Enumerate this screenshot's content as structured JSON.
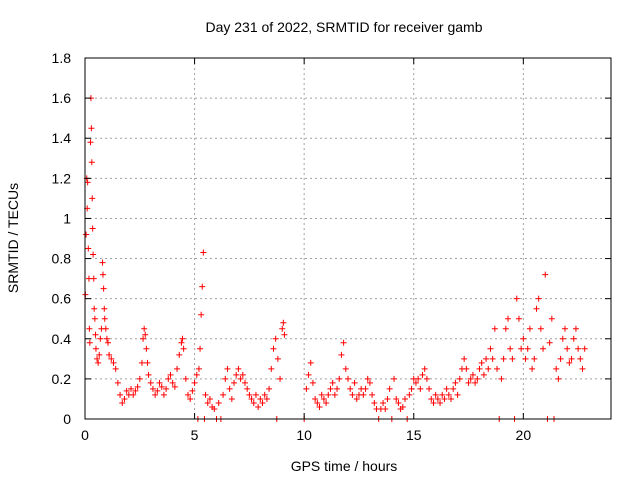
{
  "chart_data": {
    "type": "scatter",
    "title": "Day 231 of 2022, SRMTID for receiver gamb",
    "xlabel": "GPS time / hours",
    "ylabel": "SRMTID / TECUs",
    "xlim": [
      0,
      24
    ],
    "ylim": [
      0,
      1.8
    ],
    "xticks": [
      0,
      5,
      10,
      15,
      20
    ],
    "xtick_labels": [
      "0",
      "5",
      "10",
      "15",
      "20"
    ],
    "yticks": [
      0,
      0.2,
      0.4,
      0.6,
      0.8,
      1,
      1.2,
      1.4,
      1.6,
      1.8
    ],
    "ytick_labels": [
      "0",
      "0.2",
      "0.4",
      "0.6",
      "0.8",
      "1",
      "1.2",
      "1.4",
      "1.6",
      "1.8"
    ],
    "grid": true,
    "marker": "plus",
    "color": "#ff0000",
    "series": [
      {
        "name": "SRMTID",
        "points": [
          [
            0.02,
            0.62
          ],
          [
            0.05,
            0.92
          ],
          [
            0.08,
            1.2
          ],
          [
            0.1,
            1.05
          ],
          [
            0.12,
            1.18
          ],
          [
            0.15,
            0.85
          ],
          [
            0.18,
            0.7
          ],
          [
            0.2,
            0.45
          ],
          [
            0.22,
            0.38
          ],
          [
            0.25,
            1.38
          ],
          [
            0.27,
            1.6
          ],
          [
            0.29,
            1.45
          ],
          [
            0.31,
            1.28
          ],
          [
            0.33,
            1.1
          ],
          [
            0.35,
            0.95
          ],
          [
            0.37,
            0.82
          ],
          [
            0.4,
            0.7
          ],
          [
            0.42,
            0.55
          ],
          [
            0.45,
            0.5
          ],
          [
            0.48,
            0.42
          ],
          [
            0.5,
            0.35
          ],
          [
            0.55,
            0.3
          ],
          [
            0.6,
            0.28
          ],
          [
            0.65,
            0.32
          ],
          [
            0.7,
            0.4
          ],
          [
            0.75,
            0.45
          ],
          [
            0.8,
            0.78
          ],
          [
            0.82,
            0.72
          ],
          [
            0.85,
            0.65
          ],
          [
            0.88,
            0.55
          ],
          [
            0.9,
            0.5
          ],
          [
            0.95,
            0.45
          ],
          [
            1.0,
            0.4
          ],
          [
            1.05,
            0.38
          ],
          [
            1.1,
            0.32
          ],
          [
            1.2,
            0.3
          ],
          [
            1.3,
            0.28
          ],
          [
            1.4,
            0.25
          ],
          [
            1.5,
            0.18
          ],
          [
            1.6,
            0.12
          ],
          [
            1.7,
            0.08
          ],
          [
            1.8,
            0.1
          ],
          [
            1.9,
            0.14
          ],
          [
            2.0,
            0.12
          ],
          [
            2.1,
            0.15
          ],
          [
            2.2,
            0.12
          ],
          [
            2.3,
            0.14
          ],
          [
            2.4,
            0.16
          ],
          [
            2.5,
            0.2
          ],
          [
            2.6,
            0.28
          ],
          [
            2.65,
            0.4
          ],
          [
            2.7,
            0.45
          ],
          [
            2.75,
            0.42
          ],
          [
            2.8,
            0.35
          ],
          [
            2.85,
            0.28
          ],
          [
            2.9,
            0.22
          ],
          [
            3.0,
            0.18
          ],
          [
            3.1,
            0.15
          ],
          [
            3.2,
            0.12
          ],
          [
            3.3,
            0.14
          ],
          [
            3.4,
            0.18
          ],
          [
            3.5,
            0.16
          ],
          [
            3.6,
            0.12
          ],
          [
            3.7,
            0.15
          ],
          [
            3.8,
            0.2
          ],
          [
            3.9,
            0.22
          ],
          [
            4.0,
            0.18
          ],
          [
            4.1,
            0.16
          ],
          [
            4.2,
            0.25
          ],
          [
            4.3,
            0.32
          ],
          [
            4.4,
            0.38
          ],
          [
            4.45,
            0.4
          ],
          [
            4.5,
            0.35
          ],
          [
            4.6,
            0.2
          ],
          [
            4.7,
            0.12
          ],
          [
            4.8,
            0.1
          ],
          [
            4.9,
            0.14
          ],
          [
            5.0,
            0.18
          ],
          [
            5.1,
            0.22
          ],
          [
            5.15,
            0.0
          ],
          [
            5.2,
            0.25
          ],
          [
            5.25,
            0.35
          ],
          [
            5.3,
            0.52
          ],
          [
            5.35,
            0.66
          ],
          [
            5.4,
            0.83
          ],
          [
            5.45,
            0.0
          ],
          [
            5.5,
            0.12
          ],
          [
            5.6,
            0.08
          ],
          [
            5.7,
            0.1
          ],
          [
            5.8,
            0.06
          ],
          [
            5.9,
            0.05
          ],
          [
            6.0,
            0.0
          ],
          [
            6.1,
            0.08
          ],
          [
            6.2,
            0.0
          ],
          [
            6.3,
            0.12
          ],
          [
            6.4,
            0.2
          ],
          [
            6.5,
            0.25
          ],
          [
            6.6,
            0.15
          ],
          [
            6.7,
            0.1
          ],
          [
            6.8,
            0.18
          ],
          [
            6.9,
            0.22
          ],
          [
            7.0,
            0.25
          ],
          [
            7.1,
            0.2
          ],
          [
            7.2,
            0.22
          ],
          [
            7.3,
            0.18
          ],
          [
            7.4,
            0.15
          ],
          [
            7.5,
            0.12
          ],
          [
            7.6,
            0.1
          ],
          [
            7.7,
            0.08
          ],
          [
            7.8,
            0.12
          ],
          [
            7.9,
            0.06
          ],
          [
            8.0,
            0.1
          ],
          [
            8.1,
            0.08
          ],
          [
            8.2,
            0.12
          ],
          [
            8.3,
            0.1
          ],
          [
            8.4,
            0.15
          ],
          [
            8.5,
            0.25
          ],
          [
            8.6,
            0.35
          ],
          [
            8.7,
            0.4
          ],
          [
            8.75,
            0.0
          ],
          [
            8.8,
            0.3
          ],
          [
            8.9,
            0.2
          ],
          [
            9.0,
            0.45
          ],
          [
            9.05,
            0.48
          ],
          [
            9.1,
            0.42
          ],
          [
            10.0,
            0.0
          ],
          [
            10.1,
            0.15
          ],
          [
            10.2,
            0.22
          ],
          [
            10.3,
            0.28
          ],
          [
            10.4,
            0.18
          ],
          [
            10.5,
            0.1
          ],
          [
            10.6,
            0.08
          ],
          [
            10.7,
            0.06
          ],
          [
            10.8,
            0.12
          ],
          [
            10.9,
            0.1
          ],
          [
            11.0,
            0.08
          ],
          [
            11.1,
            0.12
          ],
          [
            11.2,
            0.15
          ],
          [
            11.3,
            0.18
          ],
          [
            11.4,
            0.12
          ],
          [
            11.5,
            0.15
          ],
          [
            11.6,
            0.2
          ],
          [
            11.7,
            0.32
          ],
          [
            11.8,
            0.38
          ],
          [
            11.9,
            0.25
          ],
          [
            12.0,
            0.2
          ],
          [
            12.1,
            0.15
          ],
          [
            12.2,
            0.12
          ],
          [
            12.3,
            0.18
          ],
          [
            12.4,
            0.1
          ],
          [
            12.5,
            0.12
          ],
          [
            12.6,
            0.15
          ],
          [
            12.7,
            0.12
          ],
          [
            12.8,
            0.15
          ],
          [
            12.9,
            0.2
          ],
          [
            13.0,
            0.18
          ],
          [
            13.1,
            0.12
          ],
          [
            13.2,
            0.08
          ],
          [
            13.3,
            0.05
          ],
          [
            13.4,
            0.0
          ],
          [
            13.5,
            0.05
          ],
          [
            13.6,
            0.08
          ],
          [
            13.7,
            0.05
          ],
          [
            13.8,
            0.1
          ],
          [
            13.9,
            0.15
          ],
          [
            14.0,
            0.0
          ],
          [
            14.1,
            0.2
          ],
          [
            14.2,
            0.1
          ],
          [
            14.3,
            0.08
          ],
          [
            14.4,
            0.05
          ],
          [
            14.5,
            0.06
          ],
          [
            14.6,
            0.1
          ],
          [
            14.7,
            0.0
          ],
          [
            14.8,
            0.12
          ],
          [
            14.9,
            0.15
          ],
          [
            15.0,
            0.2
          ],
          [
            15.1,
            0.18
          ],
          [
            15.2,
            0.2
          ],
          [
            15.3,
            0.15
          ],
          [
            15.4,
            0.22
          ],
          [
            15.5,
            0.25
          ],
          [
            15.6,
            0.2
          ],
          [
            15.7,
            0.15
          ],
          [
            15.8,
            0.1
          ],
          [
            15.9,
            0.08
          ],
          [
            16.0,
            0.12
          ],
          [
            16.1,
            0.1
          ],
          [
            16.2,
            0.08
          ],
          [
            16.3,
            0.12
          ],
          [
            16.4,
            0.1
          ],
          [
            16.5,
            0.15
          ],
          [
            16.6,
            0.12
          ],
          [
            16.7,
            0.1
          ],
          [
            16.8,
            0.15
          ],
          [
            16.9,
            0.18
          ],
          [
            17.0,
            0.12
          ],
          [
            17.1,
            0.2
          ],
          [
            17.2,
            0.25
          ],
          [
            17.3,
            0.3
          ],
          [
            17.4,
            0.25
          ],
          [
            17.5,
            0.18
          ],
          [
            17.6,
            0.2
          ],
          [
            17.7,
            0.22
          ],
          [
            17.8,
            0.18
          ],
          [
            17.9,
            0.2
          ],
          [
            18.0,
            0.25
          ],
          [
            18.1,
            0.28
          ],
          [
            18.2,
            0.22
          ],
          [
            18.3,
            0.3
          ],
          [
            18.4,
            0.25
          ],
          [
            18.5,
            0.35
          ],
          [
            18.6,
            0.3
          ],
          [
            18.7,
            0.45
          ],
          [
            18.8,
            0.25
          ],
          [
            18.9,
            0.0
          ],
          [
            19.0,
            0.2
          ],
          [
            19.1,
            0.3
          ],
          [
            19.2,
            0.45
          ],
          [
            19.3,
            0.5
          ],
          [
            19.4,
            0.35
          ],
          [
            19.5,
            0.3
          ],
          [
            19.6,
            0.0
          ],
          [
            19.7,
            0.6
          ],
          [
            19.8,
            0.5
          ],
          [
            19.9,
            0.35
          ],
          [
            20.0,
            0.4
          ],
          [
            20.1,
            0.3
          ],
          [
            20.2,
            0.35
          ],
          [
            20.3,
            0.45
          ],
          [
            20.4,
            0.25
          ],
          [
            20.5,
            0.3
          ],
          [
            20.6,
            0.55
          ],
          [
            20.7,
            0.6
          ],
          [
            20.8,
            0.45
          ],
          [
            20.9,
            0.35
          ],
          [
            21.0,
            0.72
          ],
          [
            21.1,
            0.0
          ],
          [
            21.2,
            0.38
          ],
          [
            21.3,
            0.5
          ],
          [
            21.4,
            0.0
          ],
          [
            21.5,
            0.25
          ],
          [
            21.6,
            0.2
          ],
          [
            21.7,
            0.3
          ],
          [
            21.8,
            0.4
          ],
          [
            21.9,
            0.45
          ],
          [
            22.0,
            0.35
          ],
          [
            22.1,
            0.28
          ],
          [
            22.2,
            0.3
          ],
          [
            22.3,
            0.4
          ],
          [
            22.4,
            0.45
          ],
          [
            22.5,
            0.35
          ],
          [
            22.6,
            0.3
          ],
          [
            22.7,
            0.25
          ],
          [
            22.8,
            0.35
          ]
        ]
      }
    ]
  }
}
